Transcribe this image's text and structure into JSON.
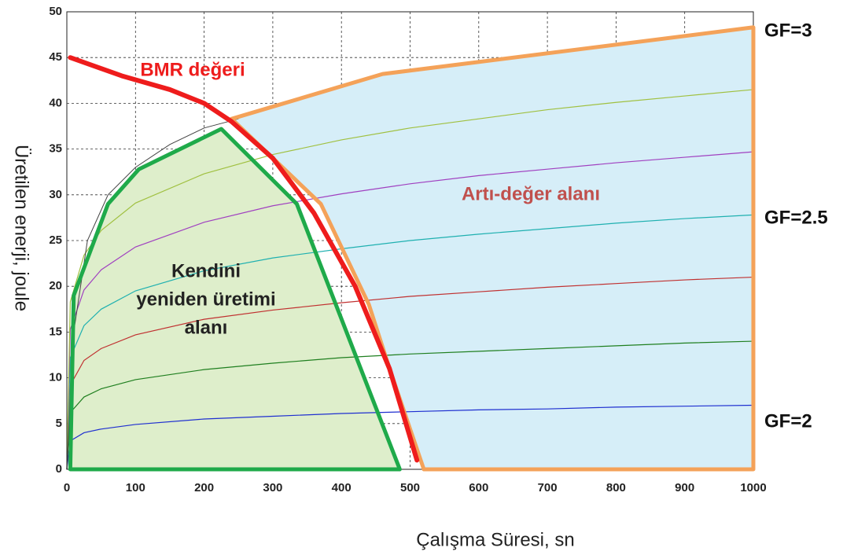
{
  "chart_data": {
    "type": "line",
    "xlabel": "Çalışma Süresi, sn",
    "ylabel": "Üretilen enerji, joule",
    "xlim": [
      0,
      1000
    ],
    "ylim": [
      0,
      50
    ],
    "xticks": [
      0,
      100,
      200,
      300,
      400,
      500,
      600,
      700,
      800,
      900,
      1000
    ],
    "yticks": [
      0,
      5,
      10,
      15,
      20,
      25,
      30,
      35,
      40,
      45,
      50
    ],
    "grid": true,
    "x": [
      0,
      5,
      25,
      50,
      100,
      200,
      300,
      400,
      500,
      600,
      700,
      800,
      900,
      1000
    ],
    "series": [
      {
        "color": "#1f2fd0",
        "values": [
          0,
          3.1,
          4.0,
          4.4,
          4.9,
          5.5,
          5.8,
          6.1,
          6.3,
          6.5,
          6.6,
          6.8,
          6.9,
          7
        ]
      },
      {
        "color": "#1f7f1f",
        "values": [
          0,
          6.2,
          7.9,
          8.8,
          9.8,
          10.9,
          11.6,
          12.2,
          12.6,
          12.9,
          13.2,
          13.5,
          13.8,
          14
        ]
      },
      {
        "color": "#c03030",
        "values": [
          0,
          9.2,
          11.9,
          13.2,
          14.7,
          16.4,
          17.4,
          18.2,
          18.9,
          19.4,
          19.9,
          20.3,
          20.7,
          21
        ]
      },
      {
        "color": "#1fb0b0",
        "values": [
          0,
          12.2,
          15.7,
          17.5,
          19.5,
          21.7,
          23.1,
          24.1,
          25,
          25.7,
          26.3,
          26.9,
          27.4,
          27.8
        ]
      },
      {
        "color": "#a040c0",
        "values": [
          0,
          15.3,
          19.6,
          21.8,
          24.3,
          27,
          28.8,
          30.1,
          31.2,
          32.1,
          32.8,
          33.5,
          34.1,
          34.7
        ]
      },
      {
        "color": "#a0c040",
        "values": [
          0,
          18.3,
          23.4,
          26.1,
          29.1,
          32.3,
          34.4,
          36,
          37.3,
          38.3,
          39.3,
          40.1,
          40.8,
          41.5
        ]
      }
    ],
    "envelope": {
      "color": "#444444",
      "points": [
        [
          0,
          0
        ],
        [
          10,
          15
        ],
        [
          30,
          25
        ],
        [
          60,
          30
        ],
        [
          100,
          33
        ],
        [
          150,
          35.5
        ],
        [
          200,
          37.3
        ],
        [
          250,
          38.3
        ]
      ]
    },
    "areas": [
      {
        "name": "Artı-değer alanı",
        "color": "#f4a259",
        "fill": "#d6eef8",
        "points": [
          [
            240,
            38.3
          ],
          [
            460,
            43.2
          ],
          [
            1000,
            48.3
          ],
          [
            1000,
            0
          ],
          [
            520,
            0
          ],
          [
            470,
            11
          ],
          [
            440,
            18
          ],
          [
            370,
            29
          ]
        ]
      },
      {
        "name": "Kendini yeniden üretimi alanı",
        "color": "#1faa4a",
        "fill": "#deeecb",
        "points": [
          [
            5,
            0
          ],
          [
            10,
            19
          ],
          [
            60,
            29
          ],
          [
            105,
            32.8
          ],
          [
            225,
            37.2
          ],
          [
            335,
            29
          ],
          [
            485,
            0
          ]
        ]
      }
    ],
    "bmr": {
      "name": "BMR değeri",
      "color": "#ee1c1c",
      "points": [
        [
          5,
          45
        ],
        [
          80,
          43
        ],
        [
          150,
          41.5
        ],
        [
          200,
          40
        ],
        [
          240,
          38
        ],
        [
          300,
          34
        ],
        [
          360,
          28
        ],
        [
          420,
          20
        ],
        [
          470,
          11
        ],
        [
          510,
          1
        ]
      ]
    },
    "area_labels": [
      "Artı-değer alanı",
      [
        "Kendini",
        "yeniden üretimi",
        "alanı"
      ]
    ],
    "gf_labels": [
      "GF=3",
      "GF=2.5",
      "GF=2"
    ]
  }
}
